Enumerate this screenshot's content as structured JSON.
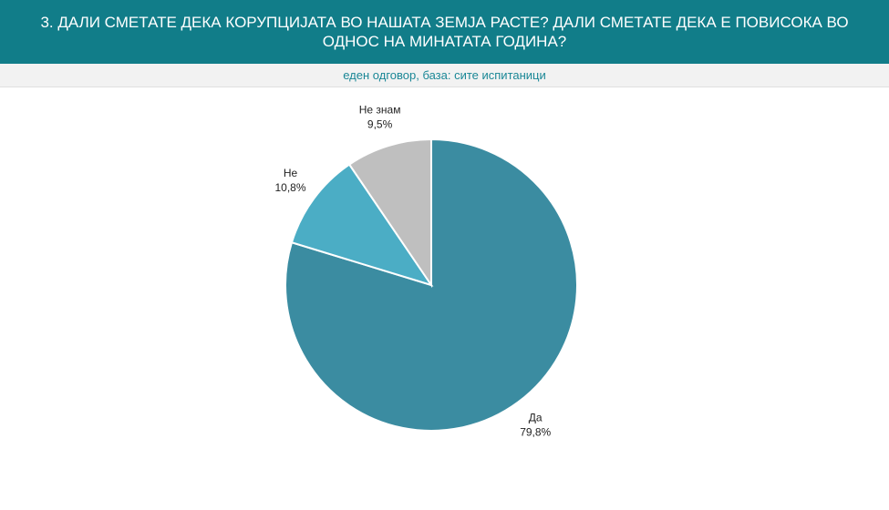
{
  "chart_data": {
    "type": "pie",
    "title": "3. ДАЛИ СМЕТАТЕ ДЕКА КОРУПЦИЈАТА ВО НАШАТА ЗЕМЈА РАСТЕ? ДАЛИ СМЕТАТЕ ДЕКА Е ПОВИСОКА ВО ОДНОС НА МИНАТАТА ГОДИНА?",
    "subtitle": "еден одговор, база: сите испитаници",
    "categories": [
      "Да",
      "Не",
      "Не знам"
    ],
    "values": [
      79.8,
      10.8,
      9.5
    ],
    "value_labels": [
      "79,8%",
      "10,8%",
      "9,5%"
    ],
    "colors": [
      "#3b8ca1",
      "#4badc5",
      "#bfbfbf"
    ]
  }
}
